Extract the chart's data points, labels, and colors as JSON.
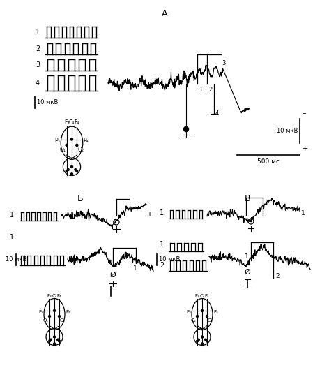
{
  "title_A": "А",
  "title_B": "Б",
  "title_C": "В",
  "label_10mkv": "10 мкВ",
  "label_500ms": "500 мс",
  "bg_color": "#ffffff",
  "line_color": "#000000"
}
